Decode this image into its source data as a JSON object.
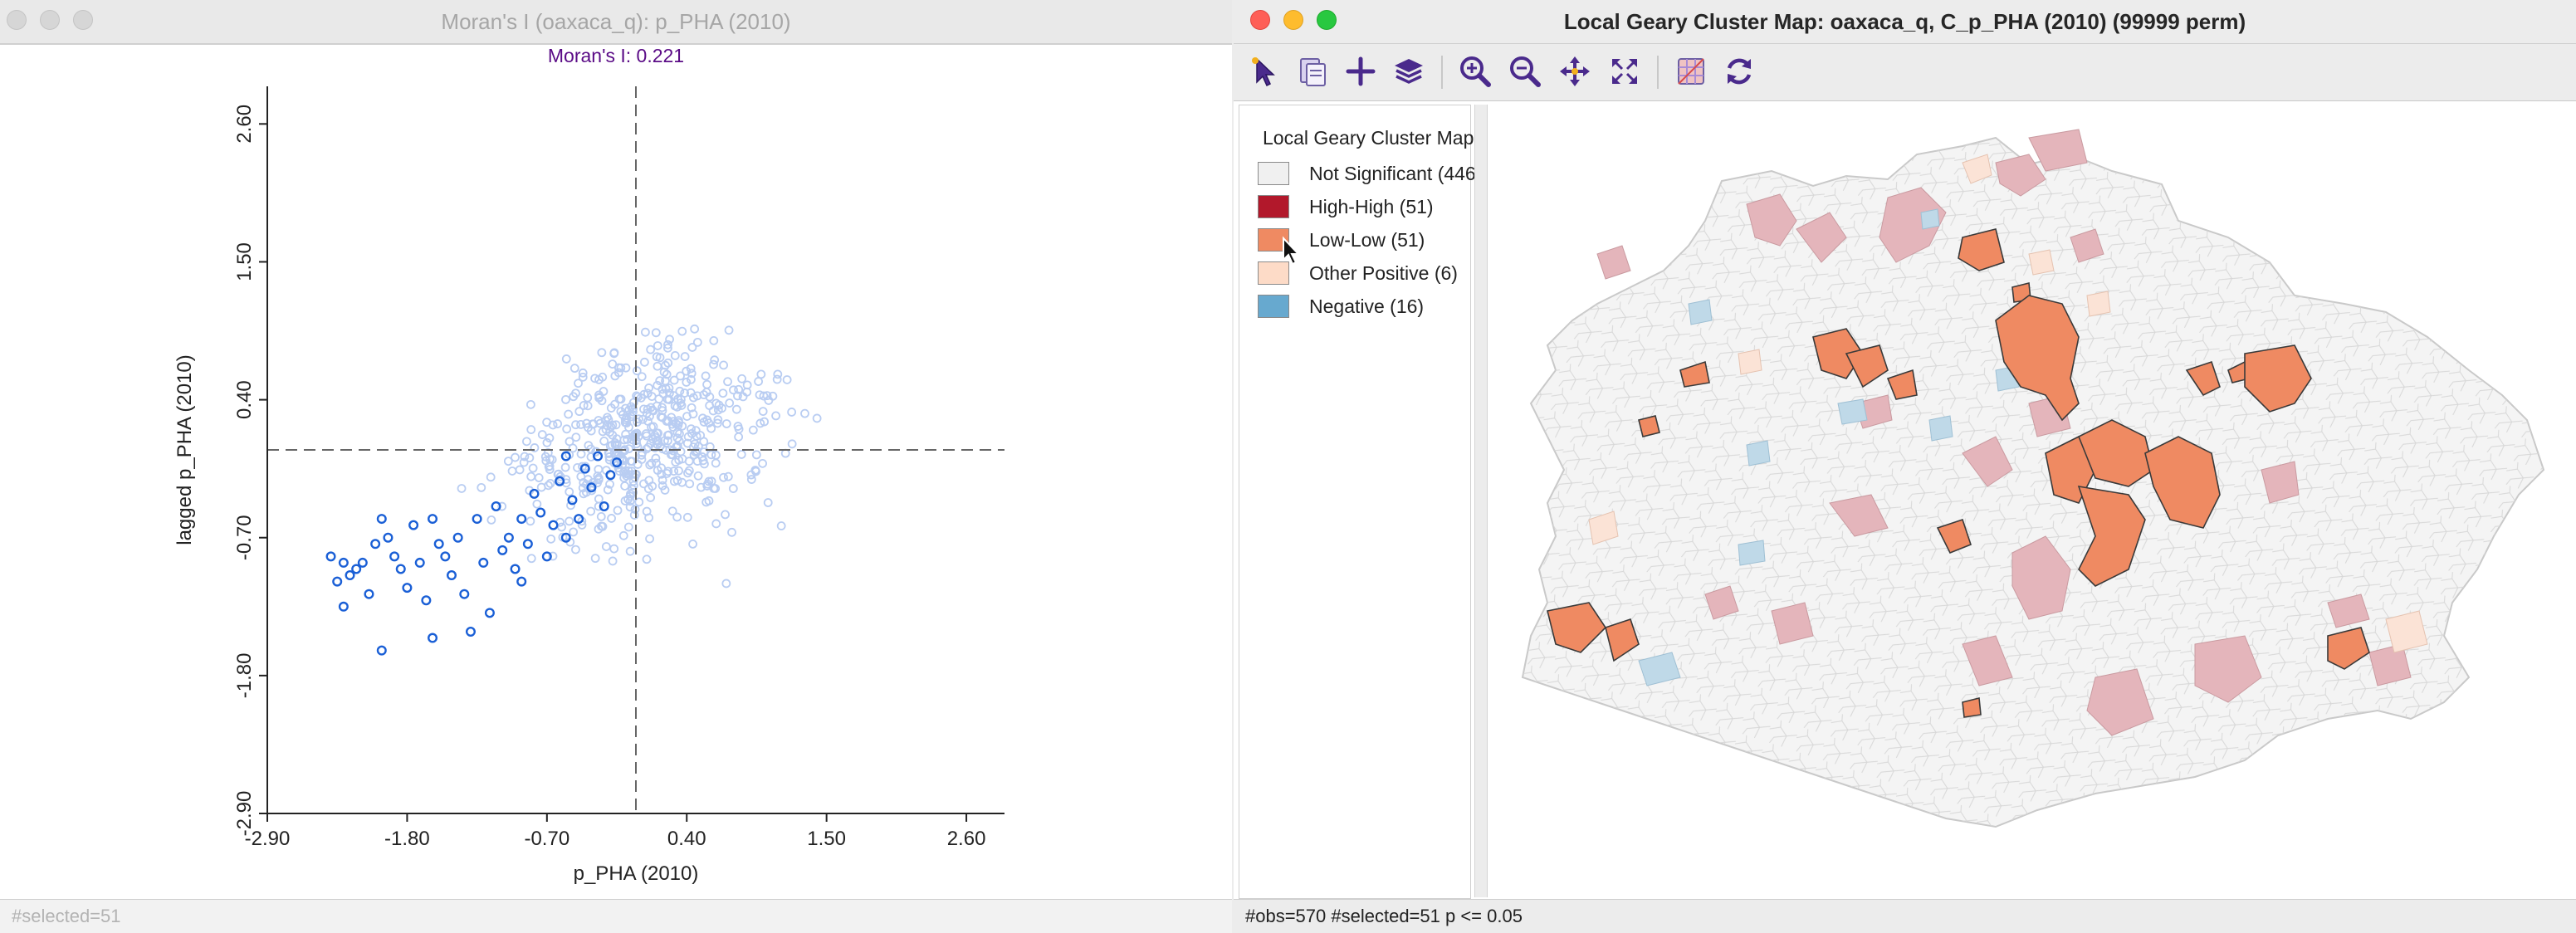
{
  "left_window": {
    "title": "Moran's I (oaxaca_q): p_PHA (2010)",
    "moran_label": "Moran's I: 0.221",
    "status": "#selected=51"
  },
  "right_window": {
    "title": "Local Geary Cluster Map: oaxaca_q, C_p_PHA (2010) (99999 perm)",
    "status": "#obs=570 #selected=51  p <= 0.05",
    "toolbar": [
      "select-tool-icon",
      "copy-icon",
      "crosshair-add-icon",
      "layers-icon",
      "zoom-in-icon",
      "zoom-out-icon",
      "pan-icon",
      "full-extent-icon",
      "basemap-icon",
      "refresh-icon"
    ],
    "legend": {
      "title": "Local Geary Cluster Map",
      "items": [
        {
          "label": "Not Significant (446)",
          "color": "#f0f0f0"
        },
        {
          "label": "High-High (51)",
          "color": "#b2182b"
        },
        {
          "label": "Low-Low (51)",
          "color": "#ef8a62"
        },
        {
          "label": "Other Positive (6)",
          "color": "#fddbc7"
        },
        {
          "label": "Negative (16)",
          "color": "#67a9cf"
        }
      ]
    }
  },
  "chart_data": {
    "type": "scatter",
    "title": "Moran's I: 0.221",
    "xlabel": "p_PHA (2010)",
    "ylabel": "lagged p_PHA (2010)",
    "xlim": [
      -2.9,
      2.9
    ],
    "ylim": [
      -2.9,
      2.9
    ],
    "xticks": [
      "-2.90",
      "-1.80",
      "-0.70",
      "0.40",
      "1.50",
      "2.60"
    ],
    "yticks": [
      "-2.90",
      "-1.80",
      "-0.70",
      "0.40",
      "1.50",
      "2.60"
    ],
    "grid": false,
    "reference_lines": {
      "x": 0,
      "y": 0
    },
    "colors": {
      "unselected": "#b9cdf2",
      "selected": "#1a5fd6"
    },
    "series": [
      {
        "values": [
          [
            -2.4,
            -0.85
          ],
          [
            -2.35,
            -1.05
          ],
          [
            -2.3,
            -1.25
          ],
          [
            -2.25,
            -1.0
          ],
          [
            -2.2,
            -0.95
          ],
          [
            -2.15,
            -0.9
          ],
          [
            -2.1,
            -1.15
          ],
          [
            -2.05,
            -0.75
          ],
          [
            -2.0,
            -1.6
          ],
          [
            -2.0,
            -0.55
          ],
          [
            -1.95,
            -0.7
          ],
          [
            -1.9,
            -0.85
          ],
          [
            -1.85,
            -0.95
          ],
          [
            -1.8,
            -1.1
          ],
          [
            -1.75,
            -0.6
          ],
          [
            -1.7,
            -0.9
          ],
          [
            -1.65,
            -1.2
          ],
          [
            -1.6,
            -1.5
          ],
          [
            -1.55,
            -0.75
          ],
          [
            -1.5,
            -0.85
          ],
          [
            -1.45,
            -1.0
          ],
          [
            -1.4,
            -0.7
          ],
          [
            -1.35,
            -1.15
          ],
          [
            -1.3,
            -1.45
          ],
          [
            -1.25,
            -0.55
          ],
          [
            -1.2,
            -0.9
          ],
          [
            -1.15,
            -1.3
          ],
          [
            -1.1,
            -0.45
          ],
          [
            -1.05,
            -0.8
          ],
          [
            -1.0,
            -0.7
          ],
          [
            -0.95,
            -0.95
          ],
          [
            -0.9,
            -0.55
          ],
          [
            -0.85,
            -0.75
          ],
          [
            -0.8,
            -0.35
          ],
          [
            -0.75,
            -0.5
          ],
          [
            -0.7,
            -0.85
          ],
          [
            -0.65,
            -0.6
          ],
          [
            -0.6,
            -0.25
          ],
          [
            -0.55,
            -0.7
          ],
          [
            -0.5,
            -0.4
          ],
          [
            -0.45,
            -0.55
          ],
          [
            -0.4,
            -0.15
          ],
          [
            -0.35,
            -0.3
          ],
          [
            -0.3,
            -0.05
          ],
          [
            -0.25,
            -0.45
          ],
          [
            -0.2,
            -0.2
          ],
          [
            -0.15,
            -0.1
          ],
          [
            -0.55,
            -0.05
          ],
          [
            -0.9,
            -1.05
          ],
          [
            -1.6,
            -0.55
          ],
          [
            -2.3,
            -0.9
          ]
        ]
      }
    ]
  }
}
